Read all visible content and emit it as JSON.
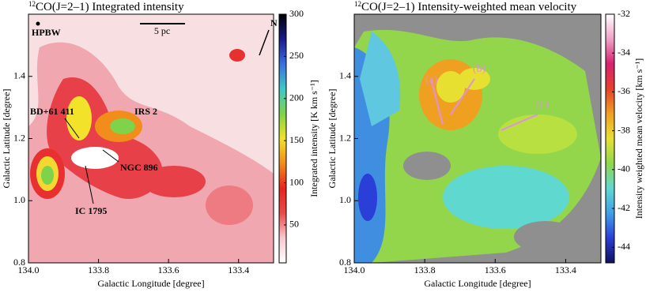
{
  "chart_data": [
    {
      "type": "heatmap",
      "title_sup": "12",
      "title": "CO(J=2–1) Integrated intensity",
      "x_label": "Galactic Longitude [degree]",
      "y_label": "Galactic Latitude [degree]",
      "xlim": [
        134.0,
        133.3
      ],
      "xticks": [
        {
          "value": 134.0,
          "label": "134.0"
        },
        133.8,
        133.6,
        133.4
      ],
      "ylim": [
        0.8,
        1.6
      ],
      "yticks": [
        0.8,
        {
          "value": 1.0,
          "label": "1.0"
        },
        1.2,
        1.4
      ],
      "colorbar": {
        "label": "Integrated intensity [K km s⁻¹]",
        "lim": [
          5,
          300
        ],
        "ticks": [
          50,
          100,
          150,
          200,
          250,
          300
        ],
        "colors": [
          "#ffffff",
          "#f7c9cf",
          "#ea4a4a",
          "#e8241c",
          "#f28c1a",
          "#f2e22a",
          "#7fd34a",
          "#3fc8c8",
          "#3c6fe0",
          "#1a1a8a",
          "#000000"
        ]
      },
      "annotations": [
        "HPBW",
        "5 pc",
        "N",
        "BD+61 411",
        "IRS 2",
        "NGC 896",
        "IC 1795"
      ]
    },
    {
      "type": "heatmap",
      "title_sup": "12",
      "title": "CO(J=2–1) Intensity-weighted mean velocity",
      "x_label": "Galactic Longitude [degree]",
      "y_label": "Galactic Latitude [degree]",
      "xlim": [
        134.0,
        133.3
      ],
      "xticks": [
        {
          "value": 134.0,
          "label": "134.0"
        },
        133.8,
        133.6,
        133.4
      ],
      "ylim": [
        0.8,
        1.6
      ],
      "yticks": [
        0.8,
        {
          "value": 1.0,
          "label": "1.0"
        },
        1.2,
        1.4
      ],
      "colorbar": {
        "label": "Intensity weighted mean velocity [km s⁻¹]",
        "lim": [
          -44.8,
          -32
        ],
        "ticks": [
          -44,
          -42,
          -40,
          -38,
          -36,
          -34,
          -32
        ],
        "colors": [
          "#101060",
          "#2a3fd8",
          "#3fa0e8",
          "#5fd8d0",
          "#8fd84a",
          "#e8e030",
          "#f0a020",
          "#e8402a",
          "#d82070",
          "#f0a0c8",
          "#ffffff"
        ]
      },
      "annotations": [
        "(a)",
        "(b)",
        "(c)"
      ]
    }
  ]
}
